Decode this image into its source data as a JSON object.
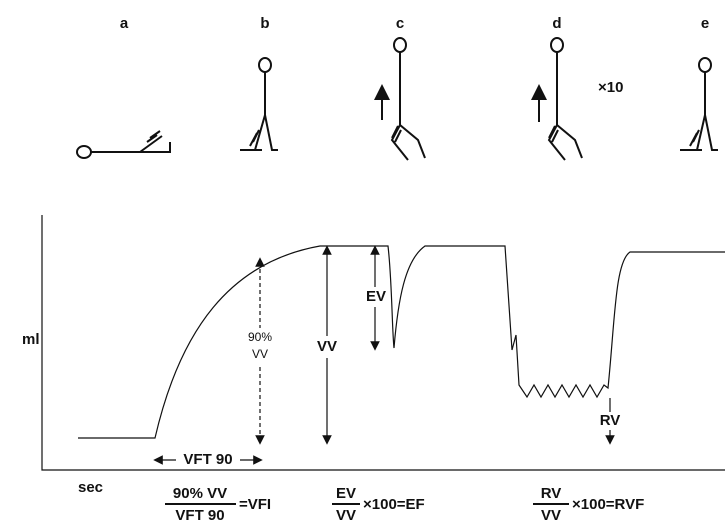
{
  "panels": [
    {
      "label": "a"
    },
    {
      "label": "b"
    },
    {
      "label": "c"
    },
    {
      "label": "d"
    },
    {
      "label": "e"
    }
  ],
  "multiplier": "×10",
  "axes": {
    "y": "ml",
    "x": "sec"
  },
  "annotations": {
    "vv90": [
      "90%",
      "VV"
    ],
    "vv": "VV",
    "ev": "EV",
    "rv": "RV",
    "vft": "VFT 90"
  },
  "formulas": [
    {
      "numerator": "90% VV",
      "denominator": "VFT 90",
      "result": "=VFI"
    },
    {
      "numerator": "EV",
      "denominator": "VV",
      "result": "×100=EF"
    },
    {
      "numerator": "RV",
      "denominator": "VV",
      "result": "×100=RVF"
    }
  ]
}
